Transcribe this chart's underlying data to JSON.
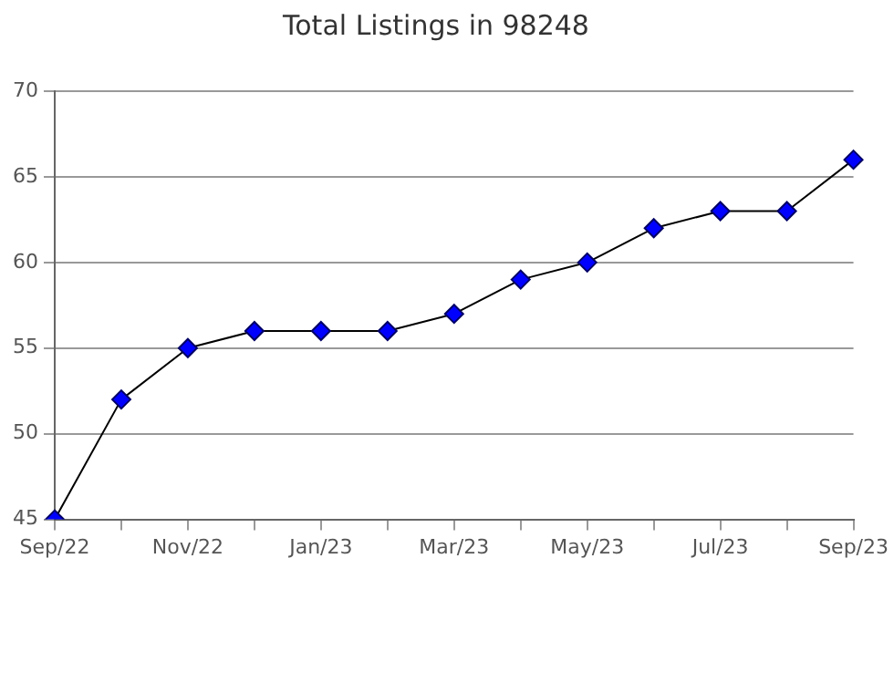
{
  "chart_data": {
    "type": "line",
    "title": "Total Listings in 98248",
    "categories": [
      "Sep/22",
      null,
      "Nov/22",
      null,
      "Jan/23",
      null,
      "Mar/23",
      null,
      "May/23",
      null,
      "Jul/23",
      null,
      "Sep/23"
    ],
    "series": [
      {
        "color": "#0000ff",
        "values": [
          45,
          52,
          55,
          56,
          56,
          56,
          57,
          59,
          60,
          62,
          63,
          63,
          66
        ]
      }
    ],
    "ylim": [
      45,
      70
    ],
    "yticks": [
      45,
      50,
      55,
      60,
      65,
      70
    ],
    "grid": "y",
    "marker": "diamond",
    "line_style": "solid"
  }
}
